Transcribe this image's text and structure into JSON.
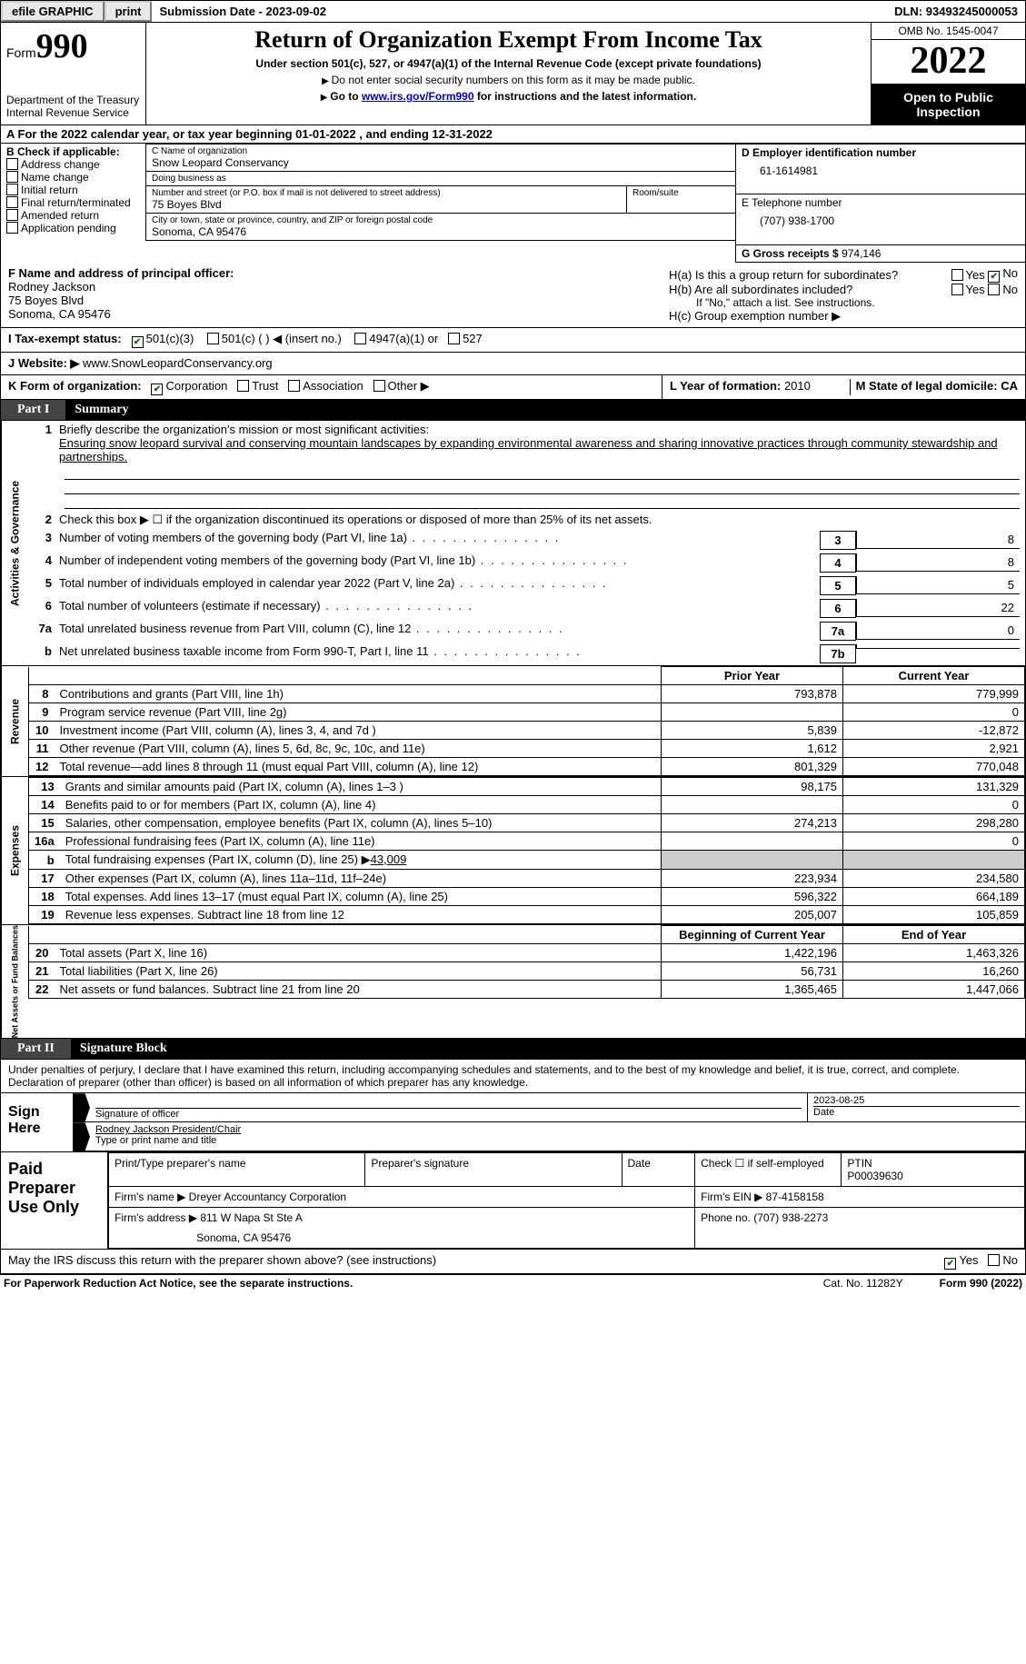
{
  "topbar": {
    "efile": "efile GRAPHIC",
    "print": "print",
    "subdate_label": "Submission Date - ",
    "subdate": "2023-09-02",
    "dln_label": "DLN: ",
    "dln": "93493245000053"
  },
  "header": {
    "form_prefix": "Form",
    "form_no": "990",
    "dept": "Department of the Treasury",
    "irs": "Internal Revenue Service",
    "title": "Return of Organization Exempt From Income Tax",
    "sub1": "Under section 501(c), 527, or 4947(a)(1) of the Internal Revenue Code (except private foundations)",
    "sub2": "Do not enter social security numbers on this form as it may be made public.",
    "sub3_pre": "Go to ",
    "sub3_link": "www.irs.gov/Form990",
    "sub3_post": " for instructions and the latest information.",
    "omb": "OMB No. 1545-0047",
    "year": "2022",
    "inspect": "Open to Public Inspection"
  },
  "row_a": {
    "text": "A For the 2022 calendar year, or tax year beginning 01-01-2022    , and ending 12-31-2022"
  },
  "col_b": {
    "hdr": "B Check if applicable:",
    "items": [
      "Address change",
      "Name change",
      "Initial return",
      "Final return/terminated",
      "Amended return",
      "Application pending"
    ]
  },
  "col_c": {
    "name_lbl": "C Name of organization",
    "name": "Snow Leopard Conservancy",
    "dba_lbl": "Doing business as",
    "dba": "",
    "addr_lbl": "Number and street (or P.O. box if mail is not delivered to street address)",
    "room_lbl": "Room/suite",
    "addr": "75 Boyes Blvd",
    "city_lbl": "City or town, state or province, country, and ZIP or foreign postal code",
    "city": "Sonoma, CA  95476"
  },
  "col_d": {
    "ein_lbl": "D Employer identification number",
    "ein": "61-1614981",
    "tel_lbl": "E Telephone number",
    "tel": "(707) 938-1700",
    "gross_lbl": "G Gross receipts $ ",
    "gross": "974,146"
  },
  "row_f": {
    "f_lbl": "F  Name and address of principal officer:",
    "f_name": "Rodney Jackson",
    "f_addr1": "75 Boyes Blvd",
    "f_addr2": "Sonoma, CA  95476",
    "ha": "H(a)  Is this a group return for subordinates?",
    "hb": "H(b)  Are all subordinates included?",
    "hb_note": "If \"No,\" attach a list. See instructions.",
    "hc": "H(c)  Group exemption number ▶",
    "yes": "Yes",
    "no": "No"
  },
  "row_i": {
    "lbl": "I   Tax-exempt status:",
    "o1": "501(c)(3)",
    "o2": "501(c) (  ) ◀ (insert no.)",
    "o3": "4947(a)(1) or",
    "o4": "527"
  },
  "row_j": {
    "lbl": "J   Website: ▶",
    "val": "  www.SnowLeopardConservancy.org"
  },
  "row_k": {
    "lbl": "K Form of organization:",
    "o1": "Corporation",
    "o2": "Trust",
    "o3": "Association",
    "o4": "Other ▶",
    "l_lbl": "L Year of formation: ",
    "l_val": "2010",
    "m": "M State of legal domicile: CA"
  },
  "part1": {
    "pn": "Part I",
    "pt": "Summary",
    "l1_lbl": "Briefly describe the organization's mission or most significant activities:",
    "l1_txt": "Ensuring snow leopard survival and conserving mountain landscapes by expanding environmental awareness and sharing innovative practices through community stewardship and partnerships.",
    "l2": "Check this box ▶ ☐  if the organization discontinued its operations or disposed of more than 25% of its net assets.",
    "lines_ag": [
      {
        "n": "3",
        "t": "Number of voting members of the governing body (Part VI, line 1a)",
        "box": "3",
        "v": "8"
      },
      {
        "n": "4",
        "t": "Number of independent voting members of the governing body (Part VI, line 1b)",
        "box": "4",
        "v": "8"
      },
      {
        "n": "5",
        "t": "Total number of individuals employed in calendar year 2022 (Part V, line 2a)",
        "box": "5",
        "v": "5"
      },
      {
        "n": "6",
        "t": "Total number of volunteers (estimate if necessary)",
        "box": "6",
        "v": "22"
      },
      {
        "n": "7a",
        "t": "Total unrelated business revenue from Part VIII, column (C), line 12",
        "box": "7a",
        "v": "0"
      },
      {
        "n": "b",
        "t": "Net unrelated business taxable income from Form 990-T, Part I, line 11",
        "box": "7b",
        "v": ""
      }
    ],
    "hdr_prior": "Prior Year",
    "hdr_curr": "Current Year",
    "rev": [
      {
        "n": "8",
        "t": "Contributions and grants (Part VIII, line 1h)",
        "p": "793,878",
        "c": "779,999"
      },
      {
        "n": "9",
        "t": "Program service revenue (Part VIII, line 2g)",
        "p": "",
        "c": "0"
      },
      {
        "n": "10",
        "t": "Investment income (Part VIII, column (A), lines 3, 4, and 7d )",
        "p": "5,839",
        "c": "-12,872"
      },
      {
        "n": "11",
        "t": "Other revenue (Part VIII, column (A), lines 5, 6d, 8c, 9c, 10c, and 11e)",
        "p": "1,612",
        "c": "2,921"
      },
      {
        "n": "12",
        "t": "Total revenue—add lines 8 through 11 (must equal Part VIII, column (A), line 12)",
        "p": "801,329",
        "c": "770,048"
      }
    ],
    "exp": [
      {
        "n": "13",
        "t": "Grants and similar amounts paid (Part IX, column (A), lines 1–3 )",
        "p": "98,175",
        "c": "131,329"
      },
      {
        "n": "14",
        "t": "Benefits paid to or for members (Part IX, column (A), line 4)",
        "p": "",
        "c": "0"
      },
      {
        "n": "15",
        "t": "Salaries, other compensation, employee benefits (Part IX, column (A), lines 5–10)",
        "p": "274,213",
        "c": "298,280"
      },
      {
        "n": "16a",
        "t": "Professional fundraising fees (Part IX, column (A), line 11e)",
        "p": "",
        "c": "0"
      }
    ],
    "l16b_pre": "Total fundraising expenses (Part IX, column (D), line 25) ▶",
    "l16b_val": "43,009",
    "exp2": [
      {
        "n": "17",
        "t": "Other expenses (Part IX, column (A), lines 11a–11d, 11f–24e)",
        "p": "223,934",
        "c": "234,580"
      },
      {
        "n": "18",
        "t": "Total expenses. Add lines 13–17 (must equal Part IX, column (A), line 25)",
        "p": "596,322",
        "c": "664,189"
      },
      {
        "n": "19",
        "t": "Revenue less expenses. Subtract line 18 from line 12",
        "p": "205,007",
        "c": "105,859"
      }
    ],
    "hdr_beg": "Beginning of Current Year",
    "hdr_end": "End of Year",
    "net": [
      {
        "n": "20",
        "t": "Total assets (Part X, line 16)",
        "p": "1,422,196",
        "c": "1,463,326"
      },
      {
        "n": "21",
        "t": "Total liabilities (Part X, line 26)",
        "p": "56,731",
        "c": "16,260"
      },
      {
        "n": "22",
        "t": "Net assets or fund balances. Subtract line 21 from line 20",
        "p": "1,365,465",
        "c": "1,447,066"
      }
    ],
    "vtab_ag": "Activities & Governance",
    "vtab_rev": "Revenue",
    "vtab_exp": "Expenses",
    "vtab_net": "Net Assets or Fund Balances"
  },
  "part2": {
    "pn": "Part II",
    "pt": "Signature Block",
    "decl": "Under penalties of perjury, I declare that I have examined this return, including accompanying schedules and statements, and to the best of my knowledge and belief, it is true, correct, and complete. Declaration of preparer (other than officer) is based on all information of which preparer has any knowledge.",
    "sign_here": "Sign Here",
    "sig_officer": "Signature of officer",
    "sig_date": "2023-08-25",
    "date_lbl": "Date",
    "name_title": "Rodney Jackson  President/Chair",
    "name_title_lbl": "Type or print name and title",
    "paid_lbl": "Paid Preparer Use Only",
    "p_name_lbl": "Print/Type preparer's name",
    "p_sig_lbl": "Preparer's signature",
    "p_date_lbl": "Date",
    "p_self": "Check ☐  if self-employed",
    "ptin_lbl": "PTIN",
    "ptin": "P00039630",
    "firm_name_lbl": "Firm's name    ▶ ",
    "firm_name": "Dreyer Accountancy Corporation",
    "firm_ein_lbl": "Firm's EIN ▶ ",
    "firm_ein": "87-4158158",
    "firm_addr_lbl": "Firm's address ▶ ",
    "firm_addr1": "811 W Napa St Ste A",
    "firm_addr2": "Sonoma, CA  95476",
    "phone_lbl": "Phone no. ",
    "phone": "(707) 938-2273",
    "may_irs": "May the IRS discuss this return with the preparer shown above? (see instructions)"
  },
  "footer": {
    "l": "For Paperwork Reduction Act Notice, see the separate instructions.",
    "m": "Cat. No. 11282Y",
    "r": "Form 990 (2022)"
  }
}
